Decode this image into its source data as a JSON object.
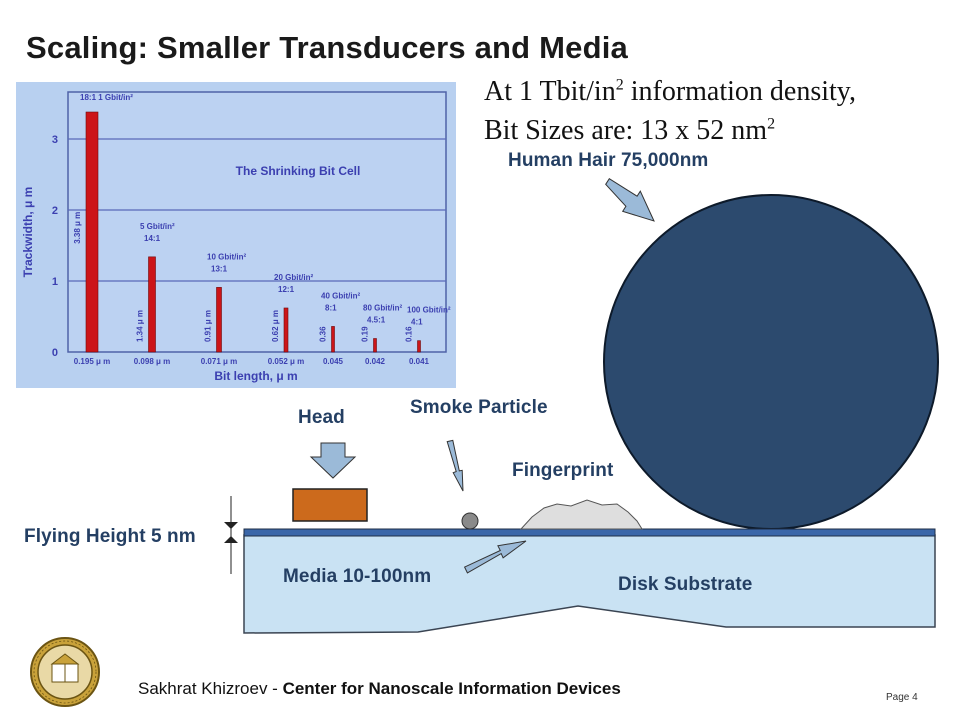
{
  "slide": {
    "title": "Scaling: Smaller Transducers and Media",
    "density_line1_pre": "At 1 Tbit/in",
    "density_line1_sup": "2",
    "density_line1_post": " information density,",
    "density_line2_pre": "Bit Sizes are:  13 x 52 nm",
    "density_line2_sup": "2"
  },
  "labels": {
    "human_hair": "Human Hair 75,000nm",
    "smoke_particle": "Smoke Particle",
    "head": "Head",
    "fingerprint": "Fingerprint",
    "flying_height": "Flying Height 5 nm",
    "media": "Media 10-100nm",
    "disk_substrate": "Disk Substrate"
  },
  "footer": {
    "author": "Sakhrat Khizroev - ",
    "org": "Center for Nanoscale Information Devices",
    "page": "Page 4"
  },
  "colors": {
    "label_blue": "#243f63",
    "hair_fill": "#2c4a6e",
    "head_fill": "#cc6a1c",
    "chart_bg": "#b8d0f0",
    "bar_red": "#cc1418"
  },
  "chart_data": {
    "type": "bar",
    "title": "The Shrinking Bit Cell",
    "ylabel": "Trackwidth, μ m",
    "xlabel": "Bit length, μ m",
    "ylim": [
      0,
      3.3
    ],
    "yticks": [
      "0",
      "1",
      "2",
      "3"
    ],
    "categories": [
      "0.195 μ m",
      "0.098 μ m",
      "0.071 μ m",
      "0.052 μ m",
      "0.045",
      "0.042",
      "0.041"
    ],
    "values": [
      3.38,
      1.34,
      0.91,
      0.62,
      0.36,
      0.19,
      0.16
    ],
    "value_labels": [
      "3.38 μ m",
      "1.34 μ m",
      "0.91 μ m",
      "0.62 μ m",
      "0.36",
      "0.19",
      "0.16"
    ],
    "densities": [
      "1 Gbit/in²",
      "5 Gbit/in²",
      "10 Gbit/in²",
      "20 Gbit/in²",
      "40 Gbit/in²",
      "80 Gbit/in²",
      "100 Gbit/in²"
    ],
    "ratios": [
      "18:1",
      "14:1",
      "13:1",
      "12:1",
      "8:1",
      "4.5:1",
      "4:1"
    ],
    "grid": true
  }
}
